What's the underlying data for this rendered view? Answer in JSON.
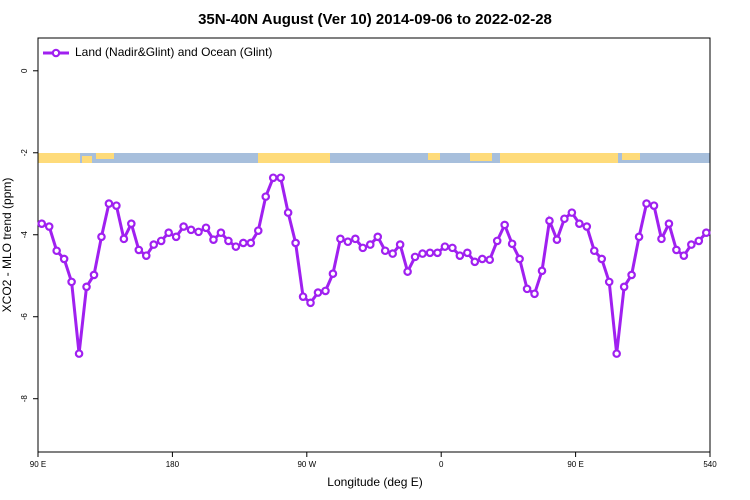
{
  "chart_data": {
    "type": "line",
    "title": "35N-40N August (Ver 10)   2014-09-06 to 2022-02-28",
    "x_label": "Longitude (deg E)",
    "y_label": "XCO2 - MLO trend (ppm)",
    "x": [
      92.5,
      97.5,
      102.5,
      107.5,
      112.5,
      117.5,
      122.5,
      127.5,
      132.5,
      137.5,
      142.5,
      147.5,
      152.5,
      157.5,
      162.5,
      167.5,
      172.5,
      177.5,
      182.5,
      187.5,
      192.5,
      197.5,
      202.5,
      207.5,
      212.5,
      217.5,
      222.5,
      227.5,
      232.5,
      237.5,
      242.5,
      247.5,
      252.5,
      257.5,
      262.5,
      267.5,
      272.5,
      277.5,
      282.5,
      287.5,
      292.5,
      297.5,
      302.5,
      307.5,
      312.5,
      317.5,
      322.5,
      327.5,
      332.5,
      337.5,
      342.5,
      347.5,
      352.5,
      357.5,
      362.5,
      367.5,
      372.5,
      377.5,
      382.5,
      387.5,
      392.5,
      397.5,
      402.5,
      407.5,
      412.5,
      417.5,
      422.5,
      427.5,
      432.5,
      437.5,
      442.5,
      447.5,
      452.5,
      457.5,
      462.5,
      467.5,
      472.5,
      477.5,
      482.5,
      487.5,
      492.5,
      497.5,
      502.5,
      507.5,
      512.5,
      517.5,
      522.5,
      527.5,
      532.5,
      537.5
    ],
    "series": [
      {
        "name": "Land (Nadir&Glint) and Ocean (Glint)",
        "color": "#a020f0",
        "values": [
          -3.73,
          -3.8,
          -4.39,
          -4.59,
          -5.15,
          -6.9,
          -5.27,
          -4.98,
          -4.05,
          -3.24,
          -3.29,
          -4.1,
          -3.73,
          -4.37,
          -4.51,
          -4.24,
          -4.15,
          -3.95,
          -4.05,
          -3.8,
          -3.88,
          -3.93,
          -3.83,
          -4.12,
          -3.95,
          -4.15,
          -4.29,
          -4.2,
          -4.2,
          -3.9,
          -3.07,
          -2.61,
          -2.61,
          -3.46,
          -4.2,
          -5.51,
          -5.66,
          -5.41,
          -5.37,
          -4.95,
          -4.1,
          -4.17,
          -4.1,
          -4.32,
          -4.24,
          -4.05,
          -4.39,
          -4.46,
          -4.24,
          -4.9,
          -4.54,
          -4.46,
          -4.44,
          -4.44,
          -4.29,
          -4.32,
          -4.51,
          -4.44,
          -4.66,
          -4.59,
          -4.61,
          -4.15,
          -3.76,
          -4.22,
          -4.59,
          -5.32,
          -5.44,
          -4.88,
          -3.66,
          -4.12,
          -3.61,
          -3.46,
          -3.73,
          -3.8,
          -4.39,
          -4.59,
          -5.15,
          -6.9,
          -5.27,
          -4.98,
          -4.05,
          -3.24,
          -3.29,
          -4.1,
          -3.73,
          -4.37,
          -4.51,
          -4.24,
          -4.15,
          -3.95
        ]
      }
    ],
    "xlim": [
      90,
      540
    ],
    "xticks": [
      {
        "value": 90,
        "label": "90 E"
      },
      180,
      {
        "value": 270,
        "label": "90 W"
      },
      {
        "value": 360,
        "label": "0"
      },
      {
        "value": 450,
        "label": "90 E"
      },
      540
    ],
    "ylim": [
      -9.3,
      0.8
    ],
    "yticks": [
      0,
      -2,
      -4,
      -6,
      -8
    ],
    "legend": "top-left"
  }
}
